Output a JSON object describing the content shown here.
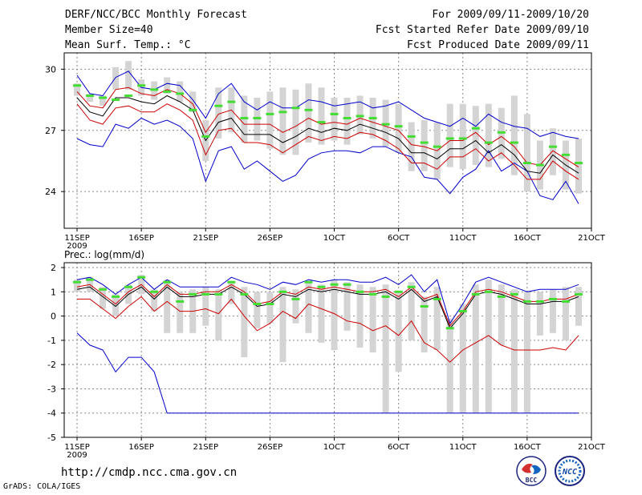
{
  "header": {
    "title": "DERF/NCC/BCC Monthly Forecast",
    "member_size": "Member Size=40",
    "variable": "Mean Surf. Temp.: °C",
    "fcst_period": "For 2009/09/11-2009/10/20",
    "started_refer": "Fcst Started Refer Date 2009/09/10",
    "produced": "Fcst Produced Date 2009/09/11"
  },
  "footer": {
    "url": "http://cmdp.ncc.cma.gov.cn",
    "credit": "GrADS: COLA/IGES",
    "logo_left": "BCC",
    "logo_right": "NCC"
  },
  "colors": {
    "box": "#d4d4d4",
    "median": "#44dd33",
    "mean": "#000000",
    "outer": "#0000cc",
    "inner": "#cc0000",
    "frame": "#000000"
  },
  "chart_data": [
    {
      "type": "line",
      "title": "Mean Surf. Temp.: °C",
      "x_day_index": [
        0,
        1,
        2,
        3,
        4,
        5,
        6,
        7,
        8,
        9,
        10,
        11,
        12,
        13,
        14,
        15,
        16,
        17,
        18,
        19,
        20,
        21,
        22,
        23,
        24,
        25,
        26,
        27,
        28,
        29,
        30,
        31,
        32,
        33,
        34,
        35,
        36,
        37,
        38,
        39
      ],
      "x_range": [
        -1,
        40
      ],
      "ylim": [
        22.2,
        30.8
      ],
      "yticks": [
        24,
        27,
        30
      ],
      "ytick_labels": [
        "24",
        "27",
        "30"
      ],
      "xticks": [
        0,
        5,
        10,
        15,
        20,
        25,
        30,
        35,
        40
      ],
      "xtick_labels": [
        "11SEP",
        "16SEP",
        "21SEP",
        "26SEP",
        "1OCT",
        "6OCT",
        "11OCT",
        "16OCT",
        "21OCT"
      ],
      "xtick_sublabel": "2009",
      "grid": true,
      "series": [
        {
          "name": "max",
          "color": "#0000cc",
          "values": [
            29.7,
            28.8,
            28.7,
            29.6,
            29.9,
            29.1,
            29.0,
            29.3,
            29.2,
            28.5,
            27.6,
            28.8,
            29.3,
            28.4,
            28.0,
            28.4,
            28.1,
            28.1,
            28.5,
            28.4,
            28.2,
            28.3,
            28.4,
            28.1,
            28.2,
            28.4,
            28.0,
            27.6,
            27.4,
            27.2,
            27.6,
            27.2,
            27.8,
            27.4,
            27.2,
            27.1,
            26.7,
            26.9,
            26.7,
            26.6
          ]
        },
        {
          "name": "p75",
          "color": "#cc0000",
          "values": [
            28.9,
            28.2,
            28.1,
            29.0,
            29.1,
            28.8,
            28.7,
            29.0,
            28.8,
            28.3,
            26.9,
            27.8,
            28.0,
            27.3,
            27.3,
            27.3,
            26.9,
            27.2,
            27.6,
            27.3,
            27.4,
            27.3,
            27.6,
            27.4,
            27.2,
            27.0,
            26.3,
            26.2,
            26.0,
            26.5,
            26.5,
            26.9,
            26.3,
            26.7,
            26.2,
            25.4,
            25.3,
            26.0,
            25.6,
            25.2
          ]
        },
        {
          "name": "mean",
          "color": "#000000",
          "values": [
            28.6,
            27.9,
            27.7,
            28.6,
            28.6,
            28.4,
            28.3,
            28.7,
            28.4,
            28.0,
            26.5,
            27.4,
            27.6,
            26.8,
            26.8,
            26.8,
            26.4,
            26.7,
            27.1,
            26.9,
            27.1,
            27.0,
            27.3,
            27.1,
            26.9,
            26.6,
            25.9,
            25.9,
            25.6,
            26.1,
            26.1,
            26.5,
            25.9,
            26.3,
            25.8,
            25.0,
            24.9,
            25.8,
            25.3,
            24.9
          ]
        },
        {
          "name": "p25",
          "color": "#cc0000",
          "values": [
            28.3,
            27.5,
            27.3,
            28.1,
            28.2,
            27.9,
            27.9,
            28.3,
            28.0,
            27.5,
            25.8,
            27.0,
            27.1,
            26.4,
            26.4,
            26.3,
            25.9,
            26.3,
            26.7,
            26.5,
            26.7,
            26.6,
            26.9,
            26.8,
            26.5,
            26.1,
            25.4,
            25.4,
            25.1,
            25.7,
            25.7,
            26.1,
            25.5,
            25.9,
            25.3,
            24.6,
            24.6,
            25.5,
            25.0,
            24.6
          ]
        },
        {
          "name": "min",
          "color": "#0000cc",
          "values": [
            26.6,
            26.3,
            26.2,
            27.3,
            27.1,
            27.6,
            27.3,
            27.5,
            27.2,
            26.6,
            24.5,
            26.0,
            26.2,
            25.1,
            25.5,
            25.0,
            24.5,
            24.8,
            25.6,
            25.9,
            26.0,
            26.0,
            25.9,
            26.2,
            26.2,
            25.9,
            25.7,
            24.7,
            24.6,
            23.9,
            24.7,
            25.1,
            26.0,
            25.0,
            25.4,
            25.0,
            23.8,
            23.6,
            24.5,
            23.4
          ]
        },
        {
          "name": "median",
          "color": "#44dd33",
          "values": [
            29.2,
            28.7,
            28.6,
            28.5,
            28.7,
            29.2,
            29.0,
            28.9,
            28.8,
            28.0,
            26.7,
            28.2,
            28.4,
            27.6,
            27.6,
            27.8,
            27.9,
            28.1,
            28.0,
            27.4,
            27.8,
            27.6,
            27.7,
            27.6,
            27.3,
            27.2,
            26.7,
            26.4,
            26.2,
            26.6,
            26.6,
            27.1,
            26.4,
            26.9,
            26.4,
            25.4,
            25.3,
            26.2,
            25.8,
            25.4
          ]
        },
        {
          "name": "box_high",
          "color": "#d4d4d4",
          "values": [
            29.3,
            28.8,
            28.7,
            30.1,
            30.4,
            29.5,
            29.4,
            29.6,
            29.4,
            28.9,
            27.5,
            29.1,
            29.1,
            28.7,
            28.6,
            28.9,
            29.1,
            29.0,
            29.3,
            29.1,
            28.6,
            28.6,
            28.7,
            28.6,
            28.5,
            28.3,
            27.4,
            27.5,
            27.4,
            28.3,
            28.3,
            28.2,
            28.3,
            28.1,
            28.7,
            27.8,
            26.5,
            27.1,
            26.5,
            26.6
          ]
        },
        {
          "name": "box_low",
          "color": "#d4d4d4",
          "values": [
            28.7,
            28.4,
            28.2,
            29.0,
            29.0,
            28.7,
            28.5,
            28.8,
            28.4,
            27.9,
            25.5,
            26.6,
            26.9,
            26.4,
            26.5,
            26.1,
            25.8,
            25.8,
            26.4,
            26.3,
            26.5,
            26.3,
            26.8,
            26.6,
            26.2,
            25.9,
            25.0,
            25.0,
            24.6,
            25.2,
            25.1,
            25.3,
            25.2,
            25.6,
            24.8,
            24.0,
            24.1,
            24.8,
            24.1,
            23.9
          ]
        }
      ]
    },
    {
      "type": "line",
      "title": "Prec.: log(mm/d)",
      "x_day_index": [
        0,
        1,
        2,
        3,
        4,
        5,
        6,
        7,
        8,
        9,
        10,
        11,
        12,
        13,
        14,
        15,
        16,
        17,
        18,
        19,
        20,
        21,
        22,
        23,
        24,
        25,
        26,
        27,
        28,
        29,
        30,
        31,
        32,
        33,
        34,
        35,
        36,
        37,
        38,
        39
      ],
      "x_range": [
        -1,
        40
      ],
      "ylim": [
        -5,
        2.2
      ],
      "yticks": [
        -5,
        -4,
        -3,
        -2,
        -1,
        0,
        1,
        2
      ],
      "ytick_labels": [
        "-5",
        "-4",
        "-3",
        "-2",
        "-1",
        "0",
        "1",
        "2"
      ],
      "xticks": [
        0,
        5,
        10,
        15,
        20,
        25,
        30,
        35,
        40
      ],
      "xtick_labels": [
        "11SEP",
        "16SEP",
        "21SEP",
        "26SEP",
        "1OCT",
        "6OCT",
        "11OCT",
        "16OCT",
        "21OCT"
      ],
      "xtick_sublabel": "2009",
      "grid": true,
      "series": [
        {
          "name": "max",
          "color": "#0000cc",
          "values": [
            1.5,
            1.6,
            1.3,
            0.9,
            1.3,
            1.6,
            1.1,
            1.5,
            1.2,
            1.2,
            1.2,
            1.2,
            1.6,
            1.4,
            1.3,
            1.1,
            1.4,
            1.3,
            1.5,
            1.4,
            1.5,
            1.5,
            1.4,
            1.4,
            1.6,
            1.3,
            1.7,
            1.0,
            1.5,
            -0.3,
            0.5,
            1.4,
            1.6,
            1.4,
            1.2,
            1.0,
            1.1,
            1.1,
            1.1,
            1.3
          ]
        },
        {
          "name": "p75",
          "color": "#cc0000",
          "values": [
            1.2,
            1.3,
            0.9,
            0.5,
            1.0,
            1.3,
            0.8,
            1.3,
            0.9,
            0.9,
            1.0,
            1.0,
            1.3,
            1.0,
            0.5,
            0.6,
            1.0,
            0.9,
            1.2,
            1.1,
            1.2,
            1.1,
            1.0,
            1.0,
            1.1,
            0.8,
            1.2,
            0.7,
            0.9,
            -0.4,
            0.2,
            1.0,
            1.1,
            1.0,
            0.8,
            0.6,
            0.6,
            0.7,
            0.7,
            0.9
          ]
        },
        {
          "name": "mean",
          "color": "#000000",
          "values": [
            1.1,
            1.2,
            0.8,
            0.4,
            0.9,
            1.2,
            0.7,
            1.2,
            0.8,
            0.8,
            0.9,
            0.9,
            1.2,
            0.9,
            0.4,
            0.5,
            0.9,
            0.8,
            1.1,
            1.0,
            1.1,
            1.0,
            0.9,
            0.9,
            1.0,
            0.7,
            1.1,
            0.6,
            0.8,
            -0.5,
            0.1,
            0.9,
            1.0,
            0.9,
            0.7,
            0.5,
            0.5,
            0.6,
            0.6,
            0.8
          ]
        },
        {
          "name": "p25",
          "color": "#cc0000",
          "values": [
            0.7,
            0.7,
            0.3,
            -0.1,
            0.4,
            0.8,
            0.2,
            0.6,
            0.2,
            0.2,
            0.3,
            0.1,
            0.7,
            0.0,
            -0.6,
            -0.3,
            0.2,
            -0.1,
            0.5,
            0.3,
            0.1,
            -0.2,
            -0.3,
            -0.6,
            -0.4,
            -0.8,
            -0.2,
            -1.1,
            -1.4,
            -1.9,
            -1.4,
            -1.1,
            -0.8,
            -1.2,
            -1.4,
            -1.4,
            -1.4,
            -1.3,
            -1.4,
            -0.8
          ]
        },
        {
          "name": "min",
          "color": "#0000cc",
          "values": [
            -0.7,
            -1.2,
            -1.4,
            -2.3,
            -1.7,
            -1.7,
            -2.3,
            -4.0,
            -4.0,
            -4.0,
            -4.0,
            -4.0,
            -4.0,
            -4.0,
            -4.0,
            -4.0,
            -4.0,
            -4.0,
            -4.0,
            -4.0,
            -4.0,
            -4.0,
            -4.0,
            -4.0,
            -4.0,
            -4.0,
            -4.0,
            -4.0,
            -4.0,
            -4.0,
            -4.0,
            -4.0,
            -4.0,
            -4.0,
            -4.0,
            -4.0,
            -4.0,
            -4.0,
            -4.0,
            -4.0
          ]
        },
        {
          "name": "median",
          "color": "#44dd33",
          "values": [
            1.4,
            1.5,
            1.1,
            0.8,
            1.2,
            1.6,
            1.0,
            1.4,
            0.6,
            0.9,
            0.9,
            0.9,
            1.4,
            0.9,
            0.5,
            0.5,
            1.0,
            0.7,
            1.4,
            1.2,
            1.3,
            1.3,
            1.0,
            0.9,
            0.8,
            1.0,
            1.2,
            0.4,
            0.7,
            -0.5,
            0.2,
            0.9,
            1.0,
            0.8,
            0.9,
            0.6,
            0.6,
            0.7,
            0.6,
            0.9
          ]
        },
        {
          "name": "box_high",
          "color": "#d4d4d4",
          "values": [
            1.5,
            1.6,
            1.2,
            0.9,
            1.3,
            1.7,
            1.1,
            1.5,
            1.0,
            1.1,
            1.2,
            1.1,
            1.4,
            1.2,
            1.0,
            1.0,
            1.2,
            1.1,
            1.4,
            1.3,
            1.5,
            1.4,
            1.3,
            1.2,
            1.3,
            1.0,
            1.4,
            0.8,
            1.2,
            -0.1,
            0.5,
            1.3,
            1.5,
            1.3,
            1.1,
            1.0,
            1.0,
            1.1,
            1.2,
            1.2
          ]
        },
        {
          "name": "box_low",
          "color": "#d4d4d4",
          "values": [
            1.0,
            1.0,
            0.3,
            0.0,
            0.5,
            0.9,
            0.2,
            -0.7,
            -0.7,
            -0.7,
            -0.4,
            -1.0,
            0.5,
            -1.7,
            -0.5,
            -0.3,
            -1.9,
            -0.3,
            -0.7,
            -1.1,
            -1.4,
            -0.6,
            -1.3,
            -1.5,
            -4.0,
            -2.3,
            -1.0,
            -1.5,
            -1.4,
            -4.0,
            -4.0,
            -4.0,
            -4.0,
            -1.2,
            -4.0,
            -4.0,
            -0.8,
            -0.7,
            -1.0,
            -0.4
          ]
        }
      ]
    }
  ]
}
